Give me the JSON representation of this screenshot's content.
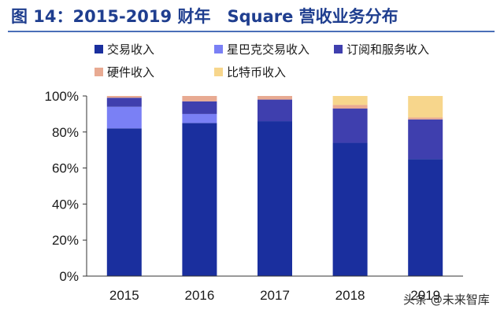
{
  "colors": {
    "title": "#1f3e8f",
    "rule": "#4a6fb8",
    "axis": "#333333",
    "text": "#1a1a1a"
  },
  "chart_data": {
    "type": "bar",
    "stacked": true,
    "title": "图 14：2015-2019 财年　Square 营收业务分布",
    "xlabel": "",
    "ylabel": "",
    "categories": [
      "2015",
      "2016",
      "2017",
      "2018",
      "2019"
    ],
    "ylim": [
      0,
      100
    ],
    "yticks": [
      0,
      20,
      40,
      60,
      80,
      100
    ],
    "ytick_labels": [
      "0%",
      "20%",
      "40%",
      "60%",
      "80%",
      "100%"
    ],
    "grid": false,
    "legend_position": "top",
    "series": [
      {
        "name": "交易收入",
        "color": "#1a2f9e",
        "values": [
          82,
          85,
          86,
          74,
          65
        ]
      },
      {
        "name": "星巴克交易收入",
        "color": "#7a80f5",
        "values": [
          12,
          5,
          0,
          0,
          0
        ]
      },
      {
        "name": "订阅和服务收入",
        "color": "#3f3fae",
        "values": [
          5,
          7,
          12,
          19,
          22
        ]
      },
      {
        "name": "硬件收入",
        "color": "#e8aa92",
        "values": [
          1,
          3,
          2,
          2,
          1
        ]
      },
      {
        "name": "比特币收入",
        "color": "#f7d68c",
        "values": [
          0,
          0,
          0,
          5,
          12
        ]
      }
    ]
  },
  "watermark": {
    "text": "头条 @未来智库"
  }
}
